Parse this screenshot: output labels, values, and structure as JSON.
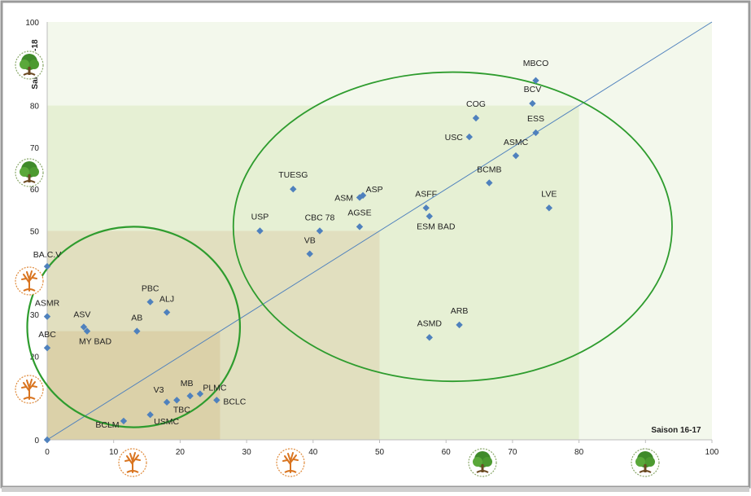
{
  "chart_data": {
    "type": "scatter",
    "xlabel": "Saison 16-17",
    "ylabel": "Saison 17-18",
    "xlim": [
      0,
      100
    ],
    "ylim": [
      0,
      100
    ],
    "x_ticks": [
      "0",
      "10",
      "20",
      "30",
      "40",
      "50",
      "60",
      "70",
      "80",
      "90",
      "100"
    ],
    "y_ticks": [
      "0",
      "10",
      "20",
      "30",
      "40",
      "50",
      "60",
      "70",
      "80",
      "90",
      "100"
    ],
    "grid": false,
    "legend": "none",
    "diagonal_reference_line": true,
    "marker_color": "#4f81bd",
    "line_color": "#4f81bd",
    "zones": [
      {
        "x": [
          0,
          80
        ],
        "y": [
          0,
          80
        ],
        "color": "#e6f0d4"
      },
      {
        "x": [
          0,
          50
        ],
        "y": [
          0,
          50
        ],
        "color": "#e1dfbf"
      },
      {
        "x": [
          0,
          26
        ],
        "y": [
          0,
          26
        ],
        "color": "#dbd1a9"
      }
    ],
    "ellipses": [
      {
        "center": [
          13,
          27
        ],
        "radius": [
          16,
          24
        ],
        "color": "#2e9c2e"
      },
      {
        "center": [
          61,
          51
        ],
        "radius": [
          33,
          37
        ],
        "color": "#2e9c2e"
      }
    ],
    "points": [
      {
        "label": "MBCO",
        "x": 73.5,
        "y": 86
      },
      {
        "label": "BCV",
        "x": 73,
        "y": 80.5
      },
      {
        "label": "COG",
        "x": 64.5,
        "y": 77
      },
      {
        "label": "ESS",
        "x": 73.5,
        "y": 73.5
      },
      {
        "label": "USC",
        "x": 63.5,
        "y": 72.5
      },
      {
        "label": "ASMC",
        "x": 70.5,
        "y": 68
      },
      {
        "label": "BCMB",
        "x": 66.5,
        "y": 61.5
      },
      {
        "label": "TUESG",
        "x": 37,
        "y": 60
      },
      {
        "label": "ASP",
        "x": 47.5,
        "y": 58.5
      },
      {
        "label": "ASM",
        "x": 47,
        "y": 58
      },
      {
        "label": "ASFF",
        "x": 57,
        "y": 55.5
      },
      {
        "label": "LVE",
        "x": 75.5,
        "y": 55.5
      },
      {
        "label": "AGSE",
        "x": 47,
        "y": 51
      },
      {
        "label": "ESM BAD",
        "x": 57.5,
        "y": 53.5
      },
      {
        "label": "USP",
        "x": 32,
        "y": 50
      },
      {
        "label": "CBC 78",
        "x": 41,
        "y": 50
      },
      {
        "label": "VB",
        "x": 39.5,
        "y": 44.5
      },
      {
        "label": "ARB",
        "x": 62,
        "y": 27.5
      },
      {
        "label": "ASMD",
        "x": 57.5,
        "y": 24.5
      },
      {
        "label": "BA.C.V",
        "x": 0,
        "y": 41.5
      },
      {
        "label": "ASMR",
        "x": 0,
        "y": 29.5
      },
      {
        "label": "ABC",
        "x": 0,
        "y": 22
      },
      {
        "label": "PBC",
        "x": 15.5,
        "y": 33
      },
      {
        "label": "ALJ",
        "x": 18,
        "y": 30.5
      },
      {
        "label": "ASV",
        "x": 5.5,
        "y": 27
      },
      {
        "label": "MY BAD",
        "x": 6,
        "y": 26
      },
      {
        "label": "AB",
        "x": 13.5,
        "y": 26
      },
      {
        "label": "MB",
        "x": 21.5,
        "y": 10.5
      },
      {
        "label": "PLMC",
        "x": 23,
        "y": 11
      },
      {
        "label": "V3",
        "x": 18,
        "y": 9
      },
      {
        "label": "TBC",
        "x": 19.5,
        "y": 9.5
      },
      {
        "label": "BCLC",
        "x": 25.5,
        "y": 9.5
      },
      {
        "label": "USMC",
        "x": 15.5,
        "y": 6
      },
      {
        "label": "BCLM",
        "x": 11.5,
        "y": 4.5
      },
      {
        "label": "",
        "x": 0,
        "y": 0
      }
    ]
  },
  "icons": {
    "left": [
      "green-tree-icon",
      "green-tree-icon",
      "orange-tree-icon",
      "orange-tree-icon"
    ],
    "bottom": [
      "orange-tree-icon",
      "orange-tree-icon",
      "green-tree-icon",
      "green-tree-icon"
    ]
  }
}
